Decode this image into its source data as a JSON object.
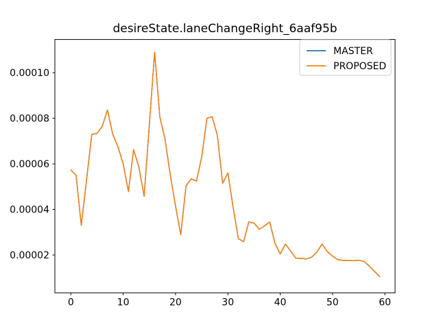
{
  "window": {
    "background": "#ffffff"
  },
  "title": "desireState.laneChangeRight_6aaf95b",
  "legend": {
    "position": "upper right",
    "items": [
      {
        "label": "MASTER",
        "color": "#1f77b4"
      },
      {
        "label": "PROPOSED",
        "color": "#ff7f0e"
      }
    ]
  },
  "chart_data": {
    "type": "line",
    "title": "desireState.laneChangeRight_6aaf95b",
    "xlabel": "",
    "ylabel": "",
    "grid": false,
    "legend_position": "upper right",
    "xlim": [
      -3.05,
      61.95
    ],
    "ylim": [
      3.4e-06,
      0.0001146
    ],
    "xticks": [
      {
        "value": 0,
        "label": "0"
      },
      {
        "value": 10,
        "label": "10"
      },
      {
        "value": 20,
        "label": "20"
      },
      {
        "value": 30,
        "label": "30"
      },
      {
        "value": 40,
        "label": "40"
      },
      {
        "value": 50,
        "label": "50"
      },
      {
        "value": 60,
        "label": "60"
      }
    ],
    "yticks": [
      {
        "value": 2e-05,
        "label": "0.00002"
      },
      {
        "value": 4e-05,
        "label": "0.00004"
      },
      {
        "value": 6e-05,
        "label": "0.00006"
      },
      {
        "value": 8e-05,
        "label": "0.00008"
      },
      {
        "value": 0.0001,
        "label": "0.00010"
      }
    ],
    "x": [
      0,
      1,
      2,
      3,
      4,
      5,
      6,
      7,
      8,
      9,
      10,
      11,
      12,
      13,
      14,
      15,
      16,
      17,
      18,
      19,
      20,
      21,
      22,
      23,
      24,
      25,
      26,
      27,
      28,
      29,
      30,
      31,
      32,
      33,
      34,
      35,
      36,
      37,
      38,
      39,
      40,
      41,
      42,
      43,
      44,
      45,
      46,
      47,
      48,
      49,
      50,
      51,
      52,
      53,
      54,
      55,
      56,
      57,
      58,
      59
    ],
    "series": [
      {
        "name": "MASTER",
        "color": "#1f77b4",
        "values": [
          5.73e-05,
          5.5e-05,
          3.3e-05,
          5.3e-05,
          7.3e-05,
          7.33e-05,
          7.65e-05,
          8.37e-05,
          7.3e-05,
          6.75e-05,
          6e-05,
          4.78e-05,
          6.63e-05,
          5.85e-05,
          4.58e-05,
          7.7e-05,
          0.000109,
          8.06e-05,
          7.08e-05,
          5.5e-05,
          4.15e-05,
          2.89e-05,
          5.03e-05,
          5.35e-05,
          5.24e-05,
          6.3e-05,
          8e-05,
          8.07e-05,
          7.25e-05,
          5.15e-05,
          5.6e-05,
          4.1e-05,
          2.72e-05,
          2.58e-05,
          3.45e-05,
          3.4e-05,
          3.13e-05,
          3.28e-05,
          3.45e-05,
          2.5e-05,
          2.05e-05,
          2.48e-05,
          2.17e-05,
          1.86e-05,
          1.85e-05,
          1.83e-05,
          1.9e-05,
          2.13e-05,
          2.48e-05,
          2.15e-05,
          1.95e-05,
          1.8e-05,
          1.76e-05,
          1.76e-05,
          1.75e-05,
          1.77e-05,
          1.72e-05,
          1.52e-05,
          1.28e-05,
          1.06e-05
        ]
      },
      {
        "name": "PROPOSED",
        "color": "#ff7f0e",
        "values": [
          5.73e-05,
          5.5e-05,
          3.3e-05,
          5.3e-05,
          7.3e-05,
          7.33e-05,
          7.65e-05,
          8.37e-05,
          7.3e-05,
          6.75e-05,
          6e-05,
          4.78e-05,
          6.63e-05,
          5.85e-05,
          4.58e-05,
          7.7e-05,
          0.000109,
          8.06e-05,
          7.08e-05,
          5.5e-05,
          4.15e-05,
          2.89e-05,
          5.03e-05,
          5.35e-05,
          5.24e-05,
          6.3e-05,
          8e-05,
          8.07e-05,
          7.25e-05,
          5.15e-05,
          5.6e-05,
          4.1e-05,
          2.72e-05,
          2.58e-05,
          3.45e-05,
          3.4e-05,
          3.13e-05,
          3.28e-05,
          3.45e-05,
          2.5e-05,
          2.05e-05,
          2.48e-05,
          2.17e-05,
          1.86e-05,
          1.85e-05,
          1.83e-05,
          1.9e-05,
          2.13e-05,
          2.48e-05,
          2.15e-05,
          1.95e-05,
          1.8e-05,
          1.76e-05,
          1.76e-05,
          1.75e-05,
          1.77e-05,
          1.72e-05,
          1.52e-05,
          1.28e-05,
          1.06e-05
        ]
      }
    ],
    "note": "MASTER and PROPOSED series are identical; orange PROPOSED line is drawn on top and fully covers blue MASTER line"
  }
}
